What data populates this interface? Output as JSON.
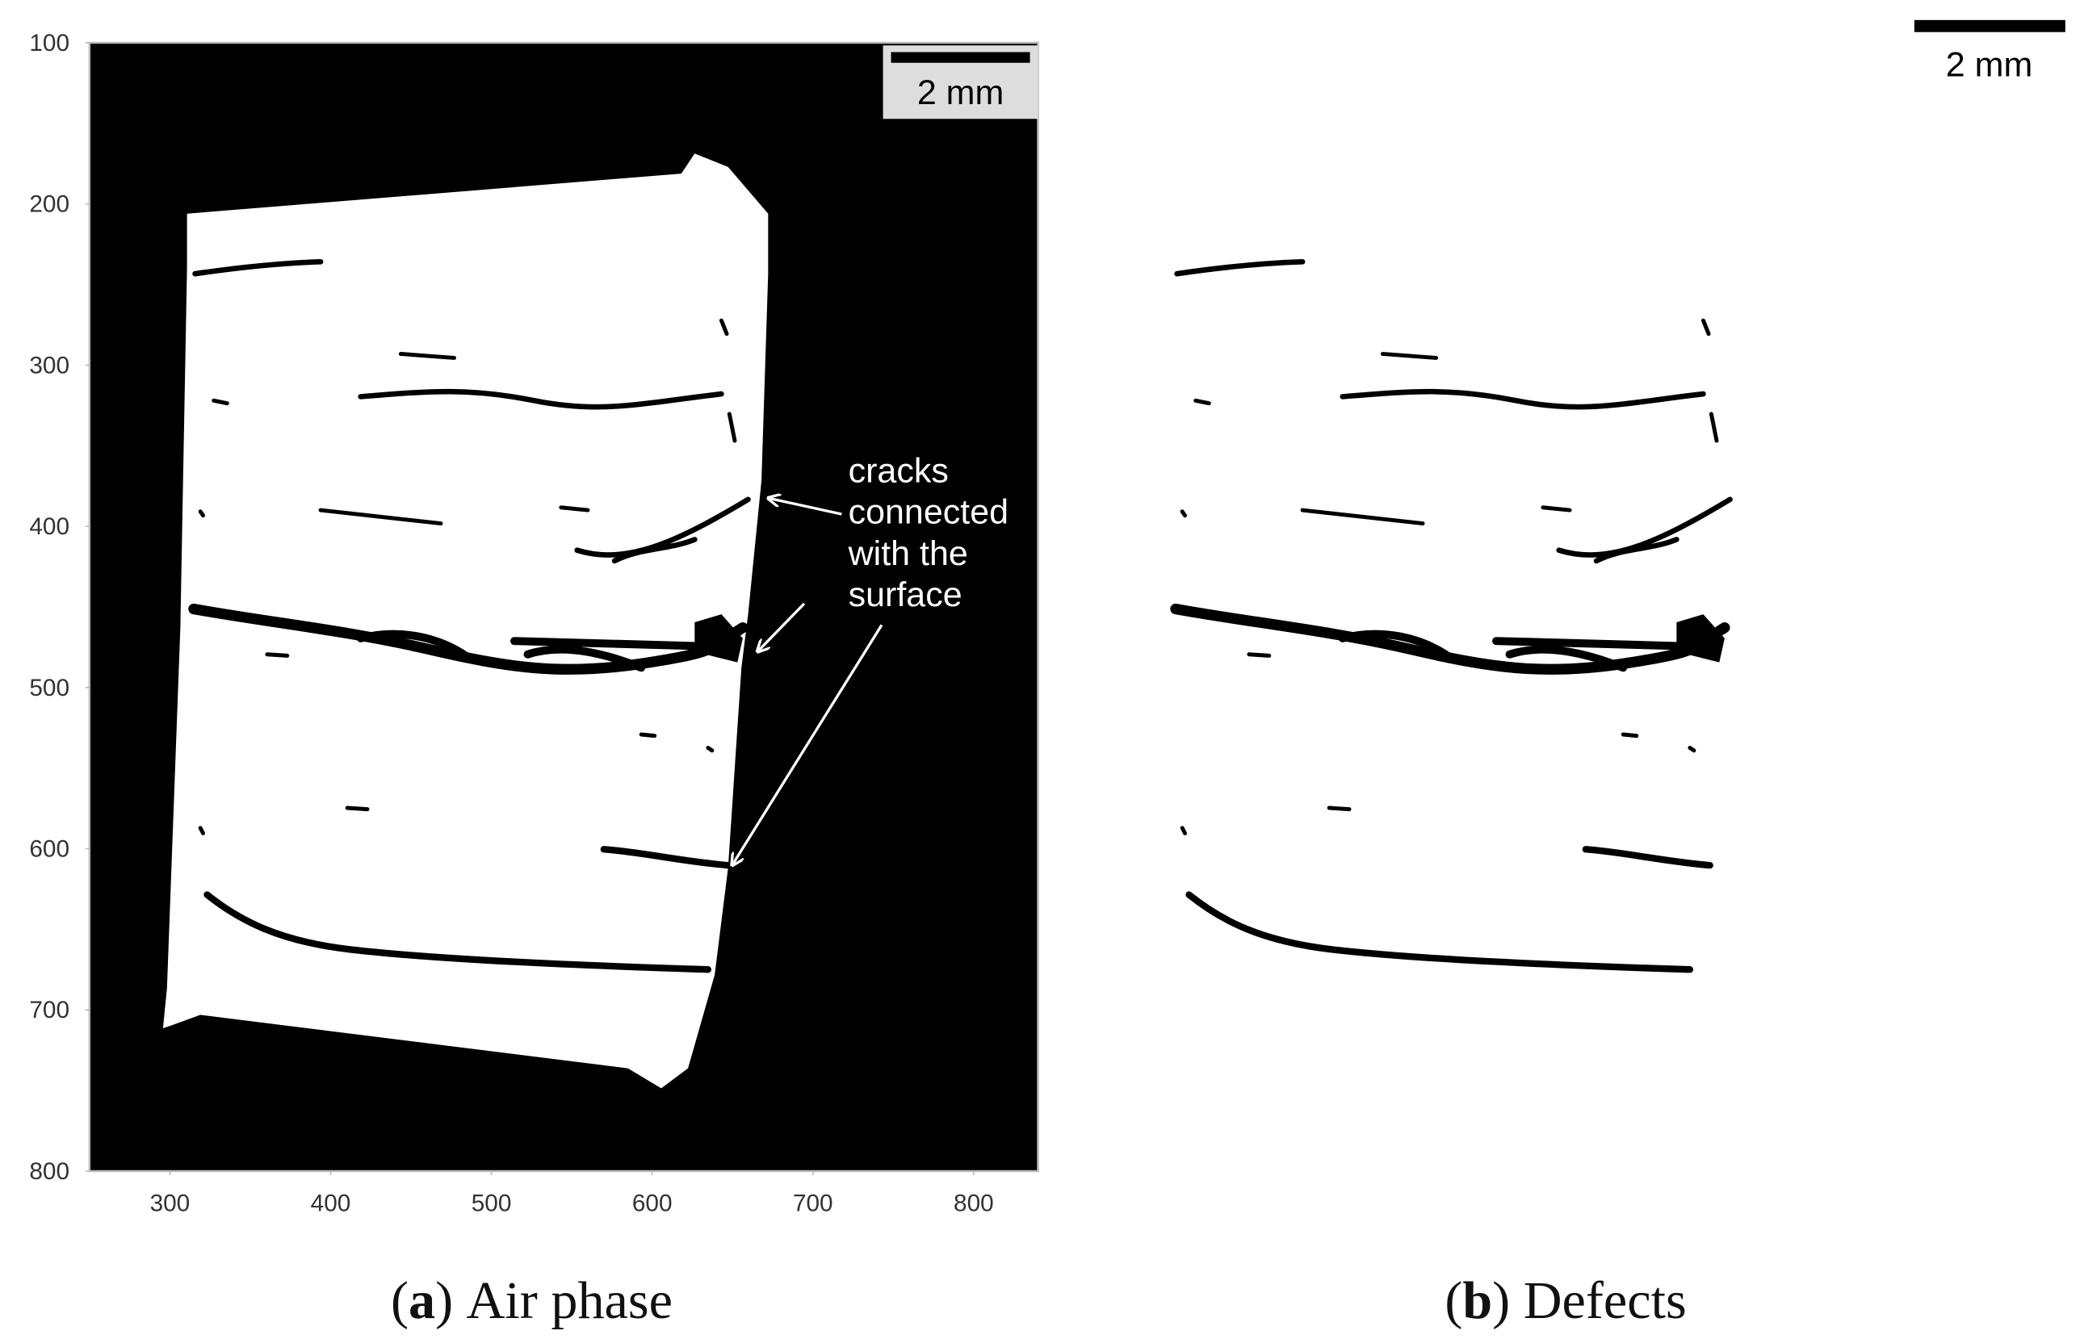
{
  "figure": {
    "panel_a": {
      "caption": [
        "(",
        "a",
        ")",
        "Air phase"
      ],
      "xlim": [
        250,
        840
      ],
      "ylim": [
        100,
        800
      ],
      "y_inverted": true,
      "xticks": [
        300,
        400,
        500,
        600,
        700,
        800
      ],
      "yticks": [
        100,
        200,
        300,
        400,
        500,
        600,
        700,
        800
      ],
      "scale_bar": "2 mm",
      "annotation": [
        "cracks",
        "connected",
        "with the",
        "surface"
      ]
    },
    "panel_b": {
      "caption": [
        "(",
        "b",
        ")",
        "Defects"
      ],
      "scale_bar": "2 mm"
    }
  }
}
